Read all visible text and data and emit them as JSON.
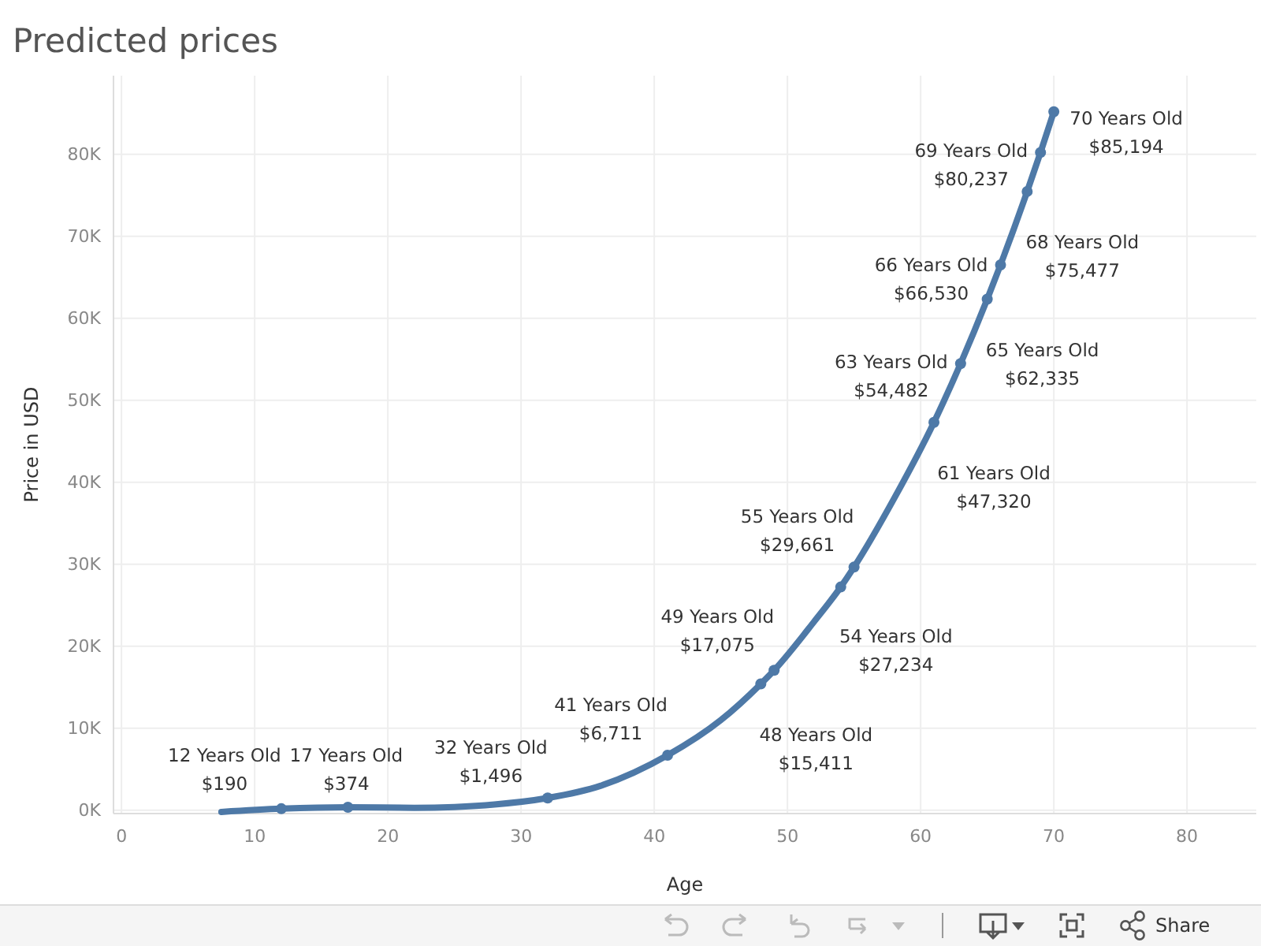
{
  "chart_data": {
    "type": "line",
    "title": "Predicted prices",
    "xlabel": "Age",
    "ylabel": "Price in USD",
    "xlim": [
      -0.6,
      85.2
    ],
    "xticks": [
      0,
      10,
      20,
      30,
      40,
      50,
      60,
      70,
      80
    ],
    "ylim": [
      -400,
      89600
    ],
    "yticks": [
      {
        "value": 0,
        "label": "0K"
      },
      {
        "value": 10000,
        "label": "10K"
      },
      {
        "value": 20000,
        "label": "20K"
      },
      {
        "value": 30000,
        "label": "30K"
      },
      {
        "value": 40000,
        "label": "40K"
      },
      {
        "value": 50000,
        "label": "50K"
      },
      {
        "value": 60000,
        "label": "60K"
      },
      {
        "value": 70000,
        "label": "70K"
      },
      {
        "value": 80000,
        "label": "80K"
      }
    ],
    "grid": true,
    "line_style": "solid",
    "annotations": [
      "Share"
    ],
    "series": [
      {
        "color": "#4e79a7",
        "x": [
          7.5,
          12,
          17,
          22,
          25,
          28,
          32,
          36,
          41,
          45,
          48,
          49,
          52,
          54,
          55,
          58,
          61,
          63,
          65,
          66,
          68,
          69,
          70
        ],
        "values": [
          -200,
          190,
          374,
          300,
          400,
          700,
          1496,
          3000,
          6711,
          11000,
          15411,
          17075,
          23000,
          27234,
          29661,
          38000,
          47320,
          54482,
          62335,
          66530,
          75477,
          80237,
          85194
        ]
      },
      {
        "type": "scatter",
        "color": "#4e79a7",
        "marker": "circle",
        "x": [
          12,
          17,
          32,
          41,
          48,
          49,
          54,
          55,
          61,
          63,
          65,
          66,
          68,
          69,
          70
        ],
        "values": [
          190,
          374,
          1496,
          6711,
          15411,
          17075,
          27234,
          29661,
          47320,
          54482,
          62335,
          66530,
          75477,
          80237,
          85194
        ],
        "value_labels": [
          "12 Years Old\n$190",
          "17 Years Old\n$374",
          "32 Years Old\n$1,496",
          "41 Years Old\n$6,711",
          "48 Years Old\n$15,411",
          "49 Years Old\n$17,075",
          "54 Years Old\n$27,234",
          "55 Years Old\n$29,661",
          "61 Years Old\n$47,320",
          "63 Years Old\n$54,482",
          "65 Years Old\n$62,335",
          "66 Years Old\n$66,530",
          "68 Years Old\n$75,477",
          "69 Years Old\n$80,237",
          "70 Years Old\n$85,194"
        ]
      }
    ]
  }
}
